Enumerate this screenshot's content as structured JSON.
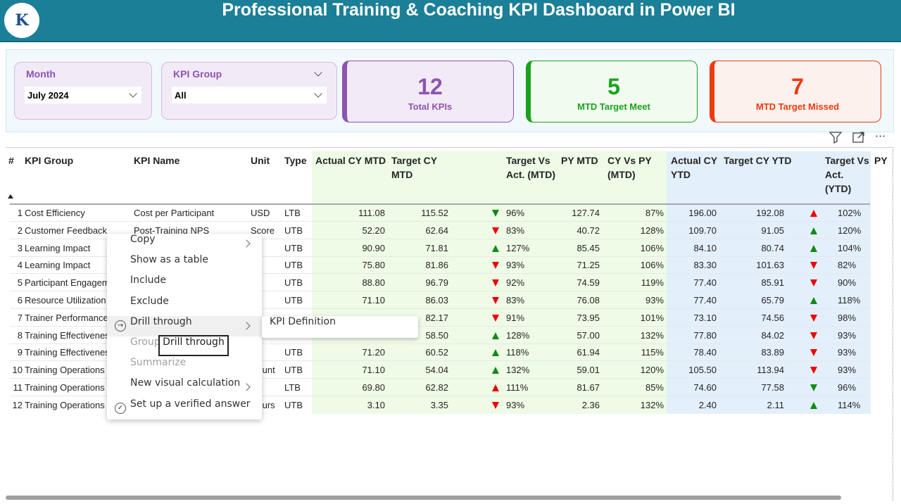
{
  "header": {
    "title": "Professional Training & Coaching KPI Dashboard in Power BI",
    "logo_text": "K"
  },
  "slicers": {
    "month": {
      "label": "Month",
      "value": "July 2024"
    },
    "kpi_group": {
      "label": "KPI Group",
      "value": "All"
    }
  },
  "cards": [
    {
      "value": "12",
      "label": "Total KPIs",
      "color": "#8d54b0"
    },
    {
      "value": "5",
      "label": "MTD Target Meet",
      "color": "#1aa31a"
    },
    {
      "value": "7",
      "label": "MTD Target Missed",
      "color": "#ee3a0c"
    }
  ],
  "columns": [
    "#",
    "KPI Group",
    "KPI Name",
    "Unit",
    "Type",
    "Actual CY MTD",
    "Target CY MTD",
    "Target Vs Act. (MTD)",
    "PY MTD",
    "CY Vs PY (MTD)",
    "Actual CY YTD",
    "Target CY YTD",
    "Target Vs Act. (YTD)",
    "PY"
  ],
  "rows": [
    {
      "n": "1",
      "group": "Cost Efficiency",
      "name": "Cost per Participant",
      "unit": "USD",
      "type": "LTB",
      "act_mtd": "111.08",
      "tgt_mtd": "115.52",
      "ma": "down",
      "mc": "#138a13",
      "tva_mtd": "96%",
      "py_mtd": "127.74",
      "cvp_mtd": "87%",
      "act_ytd": "196.00",
      "tgt_ytd": "192.08",
      "ya": "up",
      "yc": "#e00",
      "tva_ytd": "102%"
    },
    {
      "n": "2",
      "group": "Customer Feedback",
      "name": "Post-Training NPS",
      "unit": "Score",
      "type": "UTB",
      "act_mtd": "52.20",
      "tgt_mtd": "62.64",
      "ma": "down",
      "mc": "#e00",
      "tva_mtd": "83%",
      "py_mtd": "40.72",
      "cvp_mtd": "128%",
      "act_ytd": "109.70",
      "tgt_ytd": "91.05",
      "ya": "up",
      "yc": "#138a13",
      "tva_ytd": "120%"
    },
    {
      "n": "3",
      "group": "Learning Impact",
      "name": "",
      "unit": "",
      "type": "UTB",
      "act_mtd": "90.90",
      "tgt_mtd": "71.81",
      "ma": "up",
      "mc": "#138a13",
      "tva_mtd": "127%",
      "py_mtd": "85.45",
      "cvp_mtd": "106%",
      "act_ytd": "84.10",
      "tgt_ytd": "80.74",
      "ya": "up",
      "yc": "#138a13",
      "tva_ytd": "104%"
    },
    {
      "n": "4",
      "group": "Learning Impact",
      "name": "",
      "unit": "",
      "type": "UTB",
      "act_mtd": "75.80",
      "tgt_mtd": "81.86",
      "ma": "down",
      "mc": "#e00",
      "tva_mtd": "93%",
      "py_mtd": "71.25",
      "cvp_mtd": "106%",
      "act_ytd": "83.30",
      "tgt_ytd": "101.63",
      "ya": "down",
      "yc": "#e00",
      "tva_ytd": "82%"
    },
    {
      "n": "5",
      "group": "Participant Engagement",
      "name": "",
      "unit": "",
      "type": "UTB",
      "act_mtd": "88.80",
      "tgt_mtd": "96.79",
      "ma": "down",
      "mc": "#e00",
      "tva_mtd": "92%",
      "py_mtd": "74.59",
      "cvp_mtd": "119%",
      "act_ytd": "77.40",
      "tgt_ytd": "85.91",
      "ya": "down",
      "yc": "#e00",
      "tva_ytd": "90%"
    },
    {
      "n": "6",
      "group": "Resource Utilization",
      "name": "",
      "unit": "",
      "type": "UTB",
      "act_mtd": "71.10",
      "tgt_mtd": "86.03",
      "ma": "down",
      "mc": "#e00",
      "tva_mtd": "83%",
      "py_mtd": "76.08",
      "cvp_mtd": "93%",
      "act_ytd": "77.40",
      "tgt_ytd": "65.79",
      "ya": "up",
      "yc": "#138a13",
      "tva_ytd": "118%"
    },
    {
      "n": "7",
      "group": "Trainer Performance",
      "name": "",
      "unit": "",
      "type": "",
      "act_mtd": "",
      "tgt_mtd": "82.17",
      "ma": "down",
      "mc": "#e00",
      "tva_mtd": "91%",
      "py_mtd": "73.95",
      "cvp_mtd": "101%",
      "act_ytd": "73.10",
      "tgt_ytd": "74.56",
      "ya": "down",
      "yc": "#e00",
      "tva_ytd": "98%"
    },
    {
      "n": "8",
      "group": "Training Effectiveness",
      "name": "",
      "unit": "",
      "type": "",
      "act_mtd": "",
      "tgt_mtd": "58.50",
      "ma": "up",
      "mc": "#138a13",
      "tva_mtd": "128%",
      "py_mtd": "57.00",
      "cvp_mtd": "132%",
      "act_ytd": "77.80",
      "tgt_ytd": "84.02",
      "ya": "down",
      "yc": "#e00",
      "tva_ytd": "93%"
    },
    {
      "n": "9",
      "group": "Training Effectiveness",
      "name": "",
      "unit": "",
      "type": "UTB",
      "act_mtd": "71.20",
      "tgt_mtd": "60.52",
      "ma": "up",
      "mc": "#138a13",
      "tva_mtd": "118%",
      "py_mtd": "61.94",
      "cvp_mtd": "115%",
      "act_ytd": "78.40",
      "tgt_ytd": "83.89",
      "ya": "down",
      "yc": "#e00",
      "tva_ytd": "93%"
    },
    {
      "n": "10",
      "group": "Training Operations",
      "name": "",
      "unit": "Count",
      "type": "UTB",
      "act_mtd": "71.10",
      "tgt_mtd": "54.04",
      "ma": "up",
      "mc": "#138a13",
      "tva_mtd": "132%",
      "py_mtd": "59.01",
      "cvp_mtd": "120%",
      "act_ytd": "105.50",
      "tgt_ytd": "113.94",
      "ya": "down",
      "yc": "#e00",
      "tva_ytd": "93%"
    },
    {
      "n": "11",
      "group": "Training Operations",
      "name": "",
      "unit": "",
      "type": "LTB",
      "act_mtd": "69.80",
      "tgt_mtd": "62.82",
      "ma": "up",
      "mc": "#e00",
      "tva_mtd": "111%",
      "py_mtd": "81.67",
      "cvp_mtd": "85%",
      "act_ytd": "74.60",
      "tgt_ytd": "77.58",
      "ya": "down",
      "yc": "#138a13",
      "tva_ytd": "96%"
    },
    {
      "n": "12",
      "group": "Training Operations",
      "name": "",
      "unit": "Hours",
      "type": "UTB",
      "act_mtd": "3.10",
      "tgt_mtd": "3.35",
      "ma": "down",
      "mc": "#e00",
      "tva_mtd": "93%",
      "py_mtd": "2.36",
      "cvp_mtd": "132%",
      "act_ytd": "2.40",
      "tgt_ytd": "2.11",
      "ya": "up",
      "yc": "#138a13",
      "tva_ytd": "114%"
    }
  ],
  "context_menu": {
    "items": [
      {
        "label": "Copy",
        "sub": true,
        "disabled": false,
        "icon": ""
      },
      {
        "label": "Show as a table",
        "sub": false,
        "disabled": false,
        "icon": ""
      },
      {
        "label": "Include",
        "sub": false,
        "disabled": false,
        "icon": ""
      },
      {
        "label": "Exclude",
        "sub": false,
        "disabled": false,
        "icon": ""
      },
      {
        "label": "Drill through",
        "sub": true,
        "disabled": false,
        "icon": "drill-through-icon"
      },
      {
        "label": "Group",
        "sub": false,
        "disabled": true,
        "icon": ""
      },
      {
        "label": "Summarize",
        "sub": false,
        "disabled": true,
        "icon": ""
      },
      {
        "label": "New visual calculation",
        "sub": true,
        "disabled": false,
        "icon": ""
      },
      {
        "label": "Set up a verified answer",
        "sub": false,
        "disabled": false,
        "icon": "check-circle-icon"
      }
    ],
    "submenu": "KPI Definition",
    "tooltip": "Drill through"
  },
  "colors": {
    "header": "#1b7f97",
    "mtd_bg": "#eefbe6",
    "ytd_bg": "#e3effb",
    "up": "#138a13",
    "down": "#e00"
  }
}
